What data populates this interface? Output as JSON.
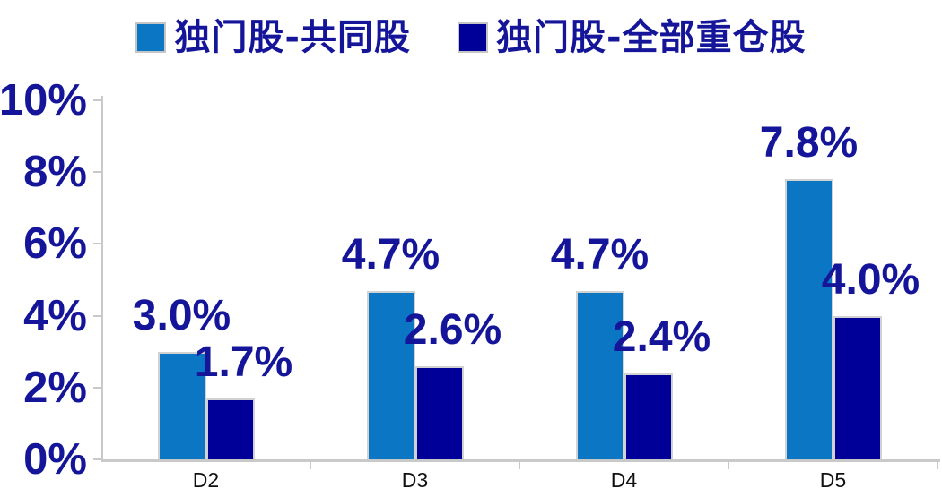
{
  "chart_data": {
    "type": "bar",
    "title": "",
    "categories": [
      "D2",
      "D3",
      "D4",
      "D5"
    ],
    "series": [
      {
        "name": "独门股-共同股",
        "color": "#0b76c4",
        "values": [
          3.0,
          4.7,
          4.7,
          7.8
        ],
        "labels": [
          "3.0%",
          "4.7%",
          "4.7%",
          "7.8%"
        ]
      },
      {
        "name": "独门股-全部重仓股",
        "color": "#000099",
        "values": [
          1.7,
          2.6,
          2.4,
          4.0
        ],
        "labels": [
          "1.7%",
          "2.6%",
          "2.4%",
          "4.0%"
        ]
      }
    ],
    "xlabel": "",
    "ylabel": "",
    "ylim": [
      0,
      10
    ],
    "y_tick_labels": [
      "0%",
      "2%",
      "4%",
      "6%",
      "8%",
      "10%"
    ],
    "grid": false,
    "legend_position": "top",
    "colors": {
      "series1": "#0b76c4",
      "series2": "#000099",
      "label_text": "#15159a",
      "axis": "#c9c9c9",
      "x_tick_text": "#111111",
      "background": "#ffffff"
    }
  }
}
